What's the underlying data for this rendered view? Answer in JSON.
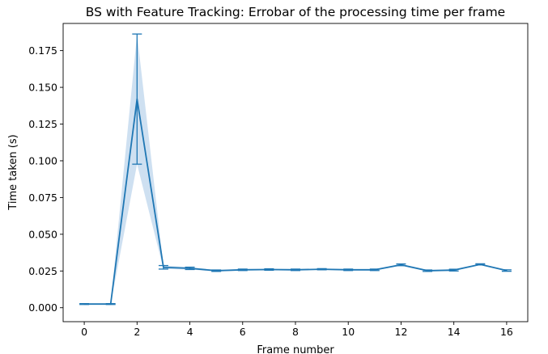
{
  "chart_data": {
    "type": "line",
    "title": "BS with Feature Tracking: Errobar of the processing time per frame",
    "xlabel": "Frame number",
    "ylabel": "Time taken (s)",
    "xlim": [
      -0.8,
      16.8
    ],
    "ylim": [
      -0.0095,
      0.1935
    ],
    "xticks": [
      0,
      2,
      4,
      6,
      8,
      10,
      12,
      14,
      16
    ],
    "xtick_labels": [
      "0",
      "2",
      "4",
      "6",
      "8",
      "10",
      "12",
      "14",
      "16"
    ],
    "yticks": [
      0.0,
      0.025,
      0.05,
      0.075,
      0.1,
      0.125,
      0.15,
      0.175
    ],
    "ytick_labels": [
      "0.000",
      "0.025",
      "0.050",
      "0.075",
      "0.100",
      "0.125",
      "0.150",
      "0.175"
    ],
    "grid": false,
    "x": [
      0,
      1,
      2,
      3,
      4,
      5,
      6,
      7,
      8,
      9,
      10,
      11,
      12,
      13,
      14,
      15,
      16
    ],
    "series": [
      {
        "mean": [
          0.0025,
          0.0025,
          0.142,
          0.0275,
          0.0268,
          0.0252,
          0.0258,
          0.026,
          0.0258,
          0.0262,
          0.0258,
          0.0258,
          0.0292,
          0.0252,
          0.0256,
          0.0295,
          0.0253
        ],
        "err": [
          0.0003,
          0.0003,
          0.0443,
          0.0012,
          0.0008,
          0.0005,
          0.0005,
          0.0005,
          0.0005,
          0.0004,
          0.0005,
          0.0005,
          0.0006,
          0.0005,
          0.0006,
          0.0004,
          0.0005
        ],
        "color": "#1f77b4",
        "band_color": "#c6dbef"
      }
    ]
  }
}
